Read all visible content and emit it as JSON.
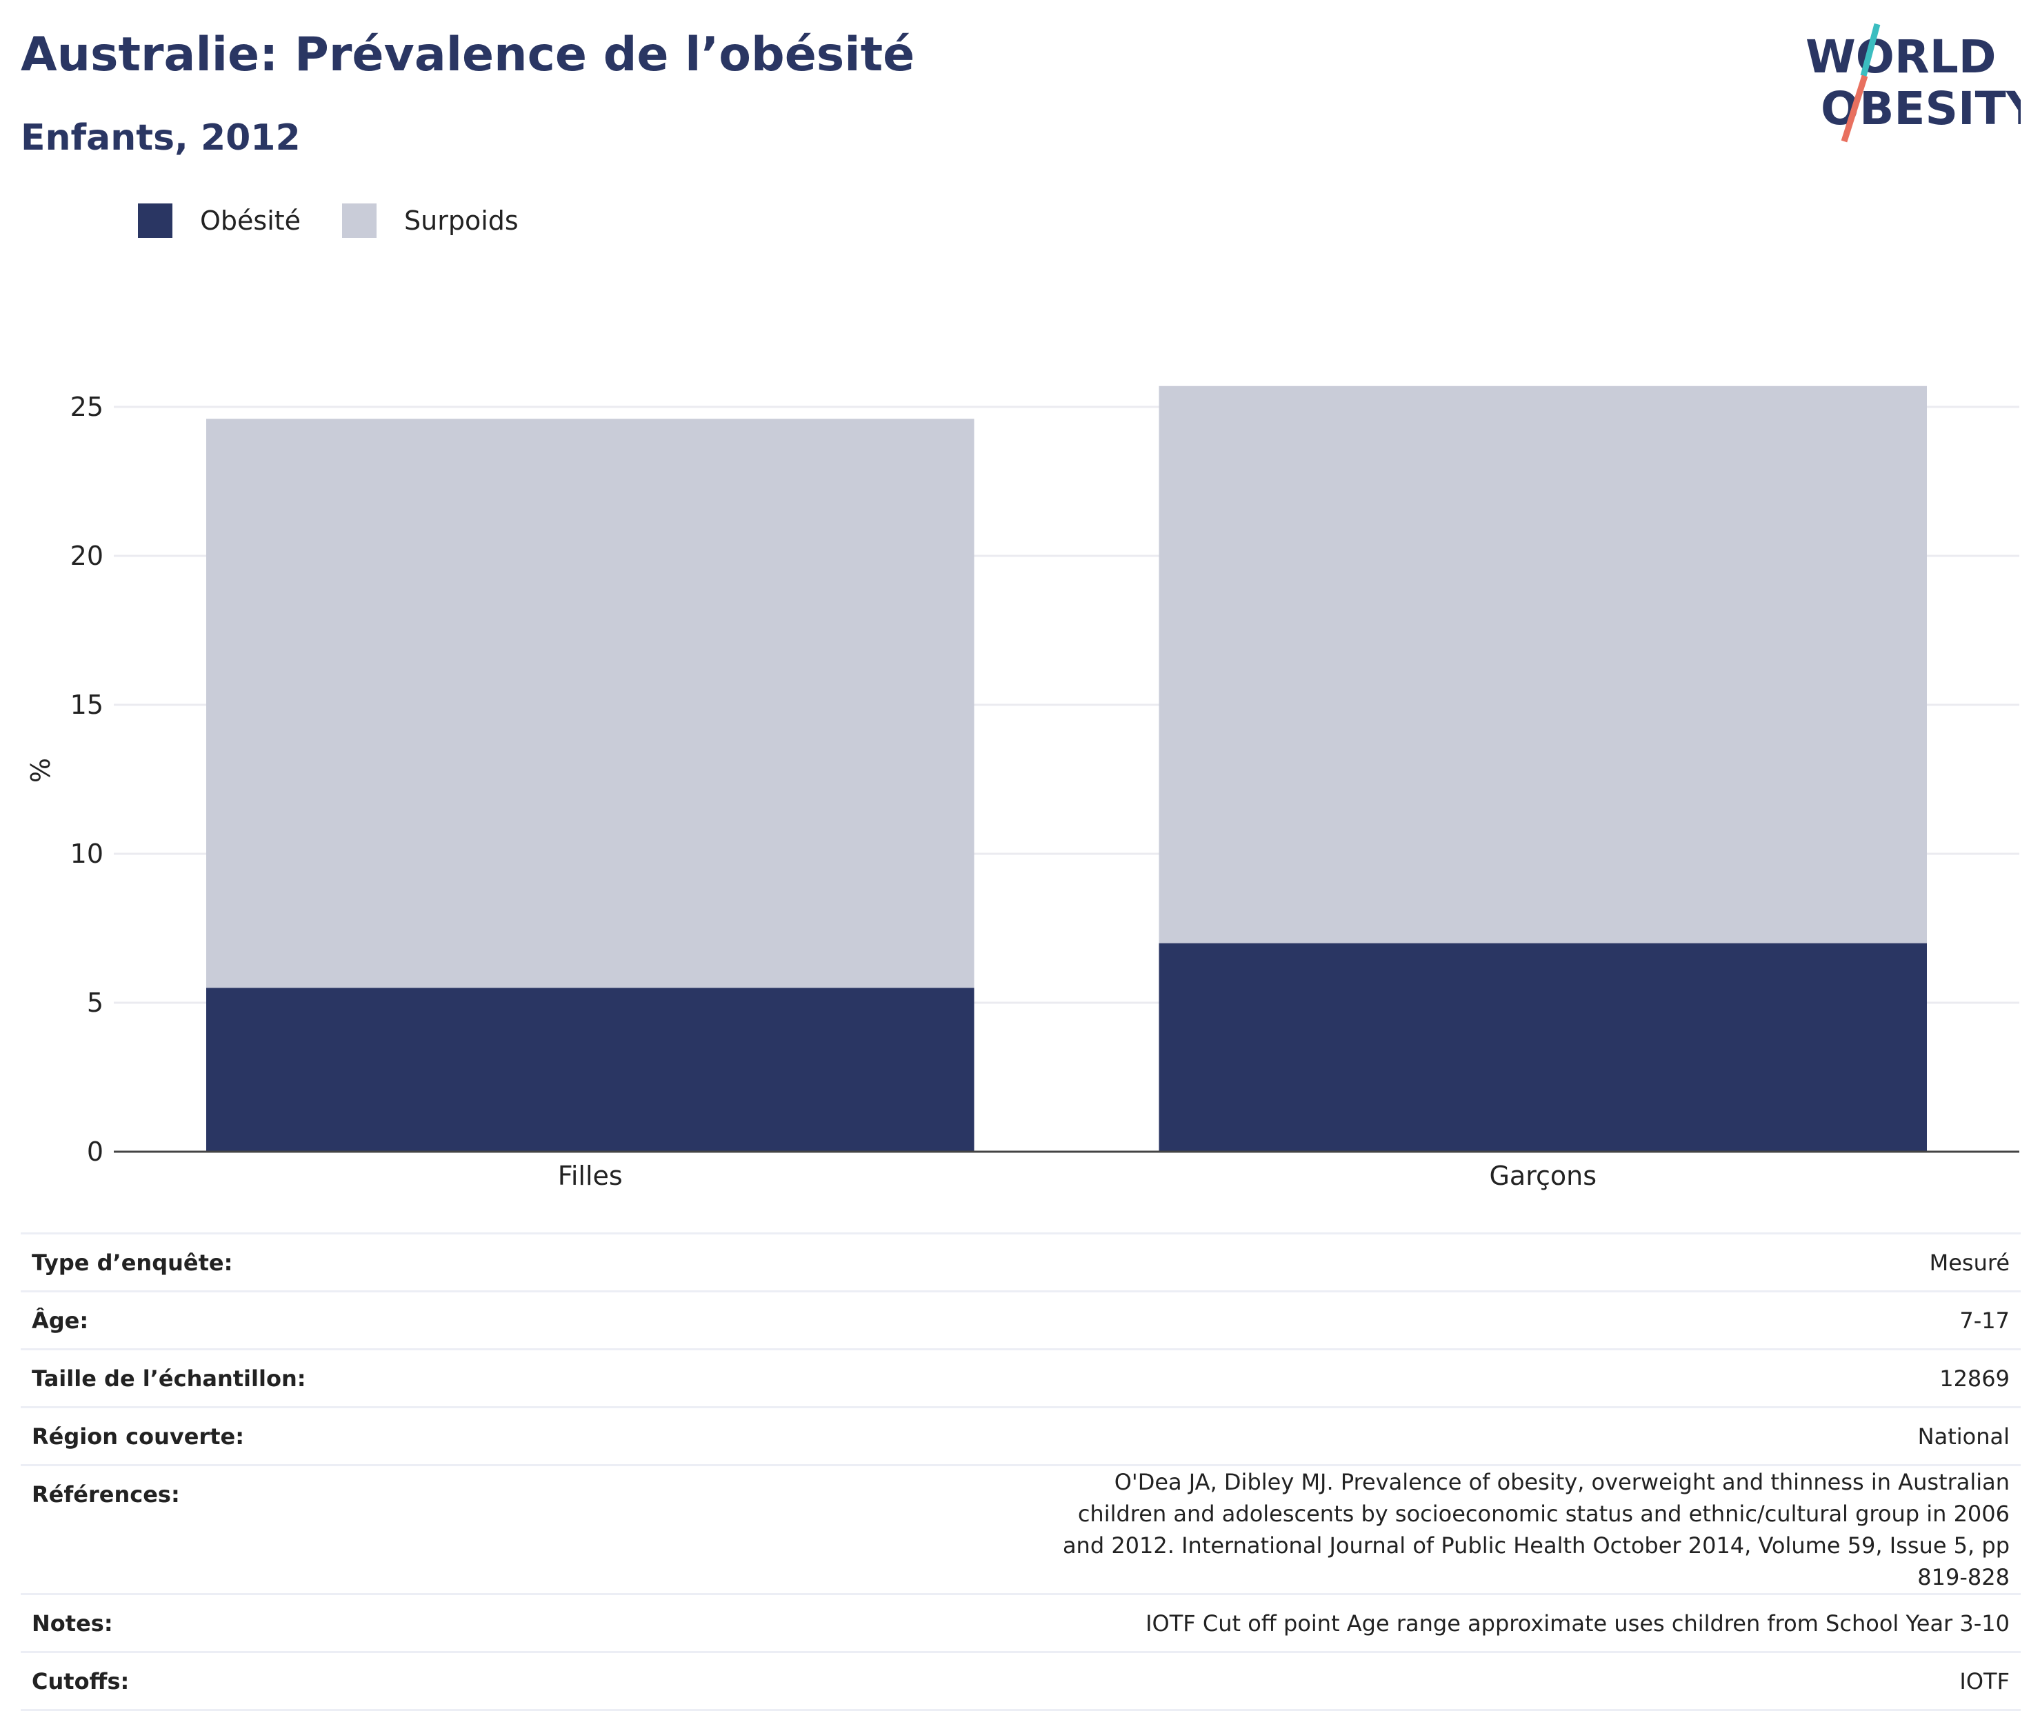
{
  "title": "Australie: Prévalence de l’obésité",
  "subtitle": "Enfants, 2012",
  "logo": {
    "line1": "WORLD",
    "line2": "OBESITY"
  },
  "colors": {
    "obesity": "#2a3663",
    "overweight": "#c9ccd8",
    "title": "#2a3663",
    "logo_teal": "#3bbdc0",
    "logo_coral": "#e8705f"
  },
  "legend": [
    {
      "label": "Obésité",
      "color": "#2a3663"
    },
    {
      "label": "Surpoids",
      "color": "#c9ccd8"
    }
  ],
  "chart_data": {
    "type": "bar",
    "stacked": true,
    "categories": [
      "Filles",
      "Garçons"
    ],
    "series": [
      {
        "name": "Obésité",
        "values": [
          5.5,
          7.0
        ]
      },
      {
        "name": "Surpoids",
        "values": [
          19.1,
          18.7
        ]
      }
    ],
    "ylabel": "%",
    "ylim": [
      0,
      27
    ],
    "yticks": [
      0,
      5,
      10,
      15,
      20,
      25
    ],
    "grid": true,
    "legend_position": "top-left"
  },
  "info": [
    {
      "key": "Type d’enquête:",
      "value": "Mesuré"
    },
    {
      "key": "Âge:",
      "value": "7-17"
    },
    {
      "key": "Taille de l’échantillon:",
      "value": "12869"
    },
    {
      "key": "Région couverte:",
      "value": "National"
    },
    {
      "key": "Références:",
      "value": "O'Dea JA, Dibley MJ. Prevalence of obesity, overweight and thinness in Australian children and adolescents by socioeconomic status and ethnic/cultural group in 2006 and 2012. International Journal of Public Health October 2014, Volume 59, Issue 5, pp 819-828"
    },
    {
      "key": "Notes:",
      "value": "IOTF Cut off point Age range approximate uses children from School Year 3-10"
    },
    {
      "key": "Cutoffs:",
      "value": "IOTF"
    }
  ]
}
